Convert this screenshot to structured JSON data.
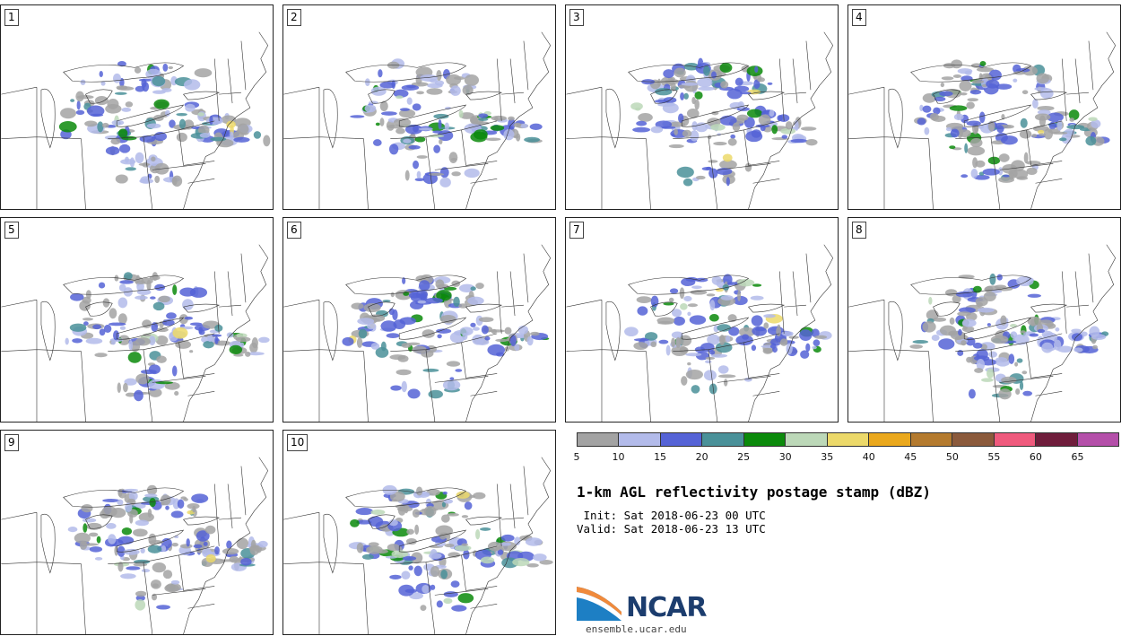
{
  "panels": [
    {
      "label": "1"
    },
    {
      "label": "2"
    },
    {
      "label": "3"
    },
    {
      "label": "4"
    },
    {
      "label": "5"
    },
    {
      "label": "6"
    },
    {
      "label": "7"
    },
    {
      "label": "8"
    },
    {
      "label": "9"
    },
    {
      "label": "10"
    }
  ],
  "colorbar": {
    "tick_labels": [
      "5",
      "10",
      "15",
      "20",
      "25",
      "30",
      "35",
      "40",
      "45",
      "50",
      "55",
      "60",
      "65"
    ],
    "colors": [
      "#a3a3a3",
      "#b3bbea",
      "#5563d6",
      "#4a9199",
      "#0b8a0b",
      "#bcd8b8",
      "#ecd96a",
      "#eaa81d",
      "#b47a2e",
      "#8b5a3c",
      "#ef5a7d",
      "#6f1d3b",
      "#b44fa9"
    ]
  },
  "title": "1-km AGL reflectivity postage stamp (dBZ)",
  "init_text": " Init: Sat 2018-06-23 00 UTC",
  "valid_text": "Valid: Sat 2018-06-23 13 UTC",
  "logo_text": "NCAR",
  "url_text": "ensemble.ucar.edu"
}
